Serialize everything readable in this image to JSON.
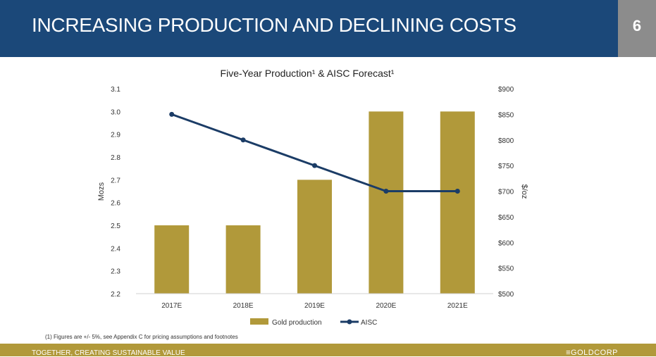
{
  "header": {
    "title": "INCREASING PRODUCTION AND DECLINING COSTS",
    "page_number": "6"
  },
  "footer": {
    "footnote": "(1) Figures are +/- 5%, see Appendix C for pricing assumptions and footnotes",
    "tagline": "TOGETHER, CREATING SUSTAINABLE VALUE",
    "logo": "≡GOLDCORP"
  },
  "colors": {
    "header_bg": "#1b4879",
    "page_box_bg": "#8c8c8c",
    "bar": "#b1993a",
    "line": "#1b3c66",
    "footer_bg": "#b1993a"
  },
  "chart_data": {
    "type": "bar",
    "title": "Five-Year Production¹ & AISC Forecast¹",
    "categories": [
      "2017E",
      "2018E",
      "2019E",
      "2020E",
      "2021E"
    ],
    "series": [
      {
        "name": "Gold production",
        "type": "bar",
        "axis": "left",
        "values": [
          2.5,
          2.5,
          2.7,
          3.0,
          3.0
        ]
      },
      {
        "name": "AISC",
        "type": "line",
        "axis": "right",
        "values": [
          850,
          800,
          750,
          700,
          700
        ]
      }
    ],
    "ylabel": "Mozs",
    "ylim": [
      2.2,
      3.1
    ],
    "yticks": [
      "2.2",
      "2.3",
      "2.4",
      "2.5",
      "2.6",
      "2.7",
      "2.8",
      "2.9",
      "3.0",
      "3.1"
    ],
    "y2label": "$/oz",
    "y2lim": [
      500,
      900
    ],
    "y2ticks": [
      "$500",
      "$550",
      "$600",
      "$650",
      "$700",
      "$750",
      "$800",
      "$850",
      "$900"
    ],
    "legend": "bottom",
    "grid": false
  }
}
